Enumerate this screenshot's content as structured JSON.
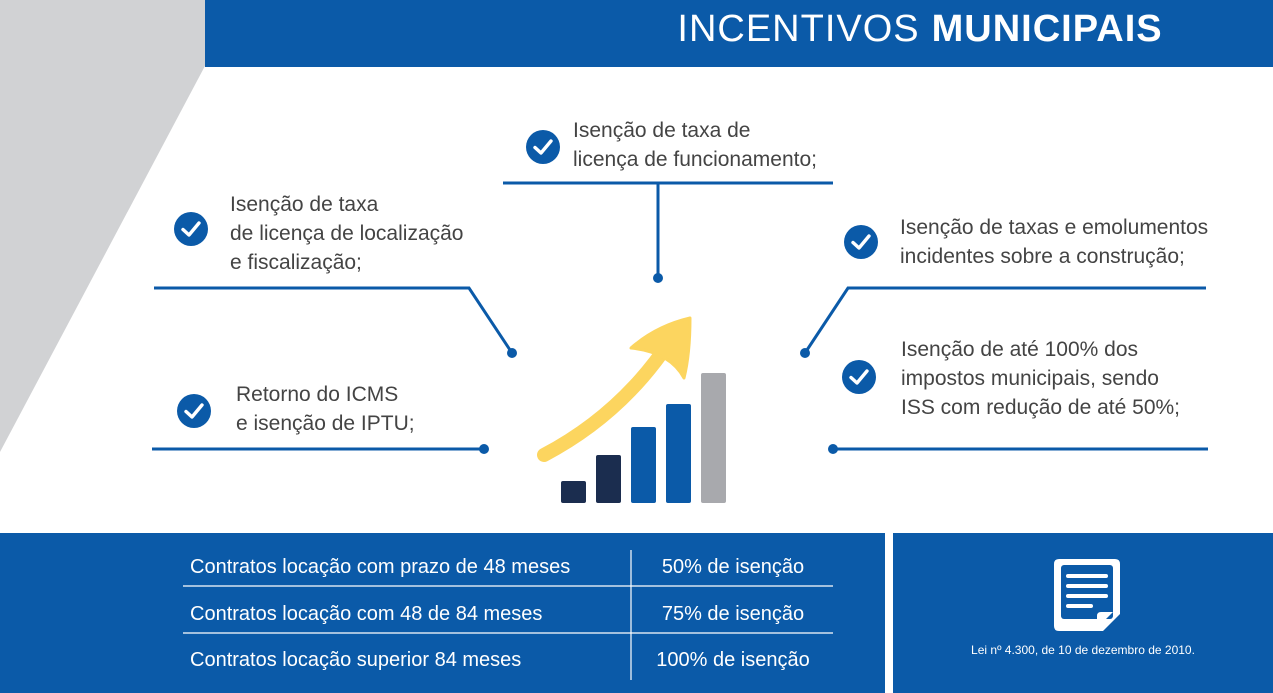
{
  "header": {
    "title_light": "INCENTIVOS",
    "title_bold": "MUNICIPAIS",
    "color": "#0b5aa8"
  },
  "incentives": [
    {
      "text": "Isenção de taxa de\nlicença de funcionamento;",
      "icon": "check-circle-icon"
    },
    {
      "text": "Isenção de taxa\nde licença de localização\ne fiscalização;",
      "icon": "check-circle-icon"
    },
    {
      "text": "Isenção de taxas e emolumentos\nincidentes sobre a construção;",
      "icon": "check-circle-icon"
    },
    {
      "text": "Retorno do ICMS\ne isenção de IPTU;",
      "icon": "check-circle-icon"
    },
    {
      "text": "Isenção de até 100% dos\nimpostos municipais, sendo\nISS com redução de até 50%;",
      "icon": "check-circle-icon"
    }
  ],
  "growth_chart": {
    "icon": "growth-bar-chart-icon",
    "bar_colors": [
      "#1b2d4f",
      "#1b2d4f",
      "#0b5aa8",
      "#0b5aa8",
      "#a8a9ad"
    ],
    "arrow_color": "#fcd55f"
  },
  "contracts_table": {
    "rows": [
      {
        "label": "Contratos locação com prazo de 48 meses",
        "value": "50% de isenção"
      },
      {
        "label": "Contratos locação com 48 de 84 meses",
        "value": "75% de isenção"
      },
      {
        "label": "Contratos locação superior 84 meses",
        "value": "100% de isenção"
      }
    ]
  },
  "law": {
    "icon": "document-icon",
    "text": "Lei nº 4.300, de 10 de dezembro de 2010."
  }
}
